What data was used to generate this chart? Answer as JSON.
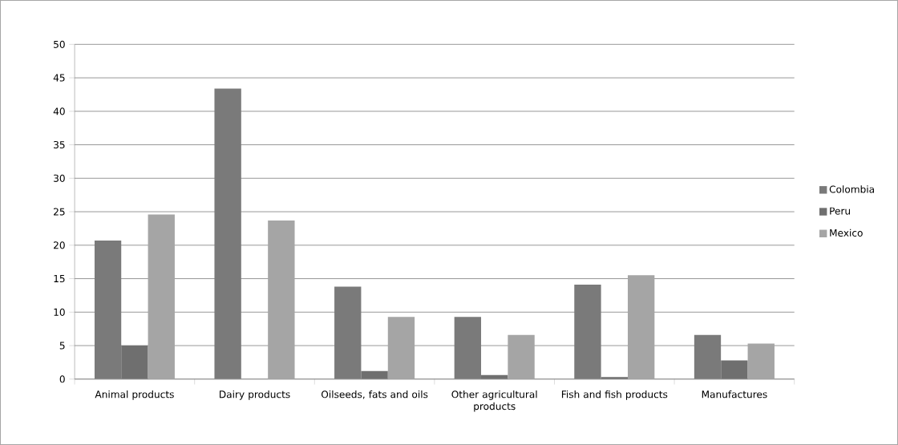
{
  "chart_data": {
    "type": "bar",
    "categories": [
      "Animal products",
      "Dairy products",
      "Oilseeds, fats and oils",
      "Other agricultural products",
      "Fish and fish products",
      "Manufactures"
    ],
    "series": [
      {
        "name": "Colombia",
        "color": "#7a7a7a",
        "values": [
          20.7,
          43.4,
          13.8,
          9.3,
          14.1,
          6.6
        ]
      },
      {
        "name": "Peru",
        "color": "#6f6f6f",
        "values": [
          5.0,
          0,
          1.2,
          0.6,
          0.3,
          2.8
        ]
      },
      {
        "name": "Mexico",
        "color": "#a5a5a5",
        "values": [
          24.6,
          23.7,
          9.3,
          6.6,
          15.5,
          5.3
        ]
      }
    ],
    "ylim": [
      0,
      50
    ],
    "yticks": [
      0,
      5,
      10,
      15,
      20,
      25,
      30,
      35,
      40,
      45,
      50
    ],
    "grid": "y",
    "legend": "right"
  }
}
